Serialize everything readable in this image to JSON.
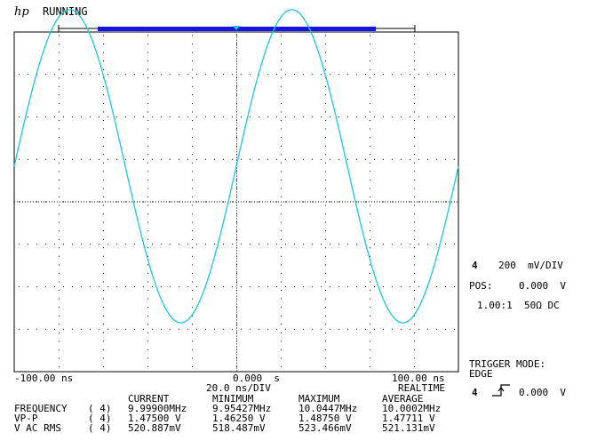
{
  "header": {
    "brand": "hp",
    "status": "RUNNING"
  },
  "colors": {
    "trace": "#19c7d9",
    "memory_bar": "#1414e6",
    "grid": "#000000"
  },
  "time_axis": {
    "left_label": "-100.00 ns",
    "center_label": "0.000  s",
    "right_label": "100.00 ns",
    "timebase": "20.0 ns/DIV",
    "mode": "REALTIME"
  },
  "channel": {
    "number": "4",
    "scale": "200  mV/DIV",
    "pos_label": "POS:",
    "pos_value": "0.000  V",
    "probe": "1.00:1  50Ω DC"
  },
  "trigger": {
    "label": "TRIGGER MODE:",
    "mode": "EDGE",
    "channel": "4",
    "level": "0.000  V",
    "edge_icon": "rising-edge-icon"
  },
  "measurements": {
    "headers": [
      "CURRENT",
      "MINIMUM",
      "MAXIMUM",
      "AVERAGE"
    ],
    "rows": [
      {
        "name": "FREQUENCY",
        "chan": "( 4)",
        "current": "9.99900MHz",
        "minimum": "9.95427MHz",
        "maximum": "10.0447MHz",
        "average": "10.0002MHz"
      },
      {
        "name": "VP-P",
        "chan": "( 4)",
        "current": "1.47500 V",
        "minimum": "1.46250 V",
        "maximum": "1.48750 V",
        "average": "1.47711 V"
      },
      {
        "name": "V AC RMS",
        "chan": "( 4)",
        "current": "520.887mV",
        "minimum": "518.487mV",
        "maximum": "523.466mV",
        "average": "521.131mV"
      }
    ]
  },
  "waveform": {
    "frequency_mhz": 10,
    "amplitude_v": 0.7375,
    "phase_offset_ns": -100,
    "time_range_ns": [
      -100,
      100
    ],
    "volt_range_v": [
      -0.8,
      0.8
    ]
  }
}
